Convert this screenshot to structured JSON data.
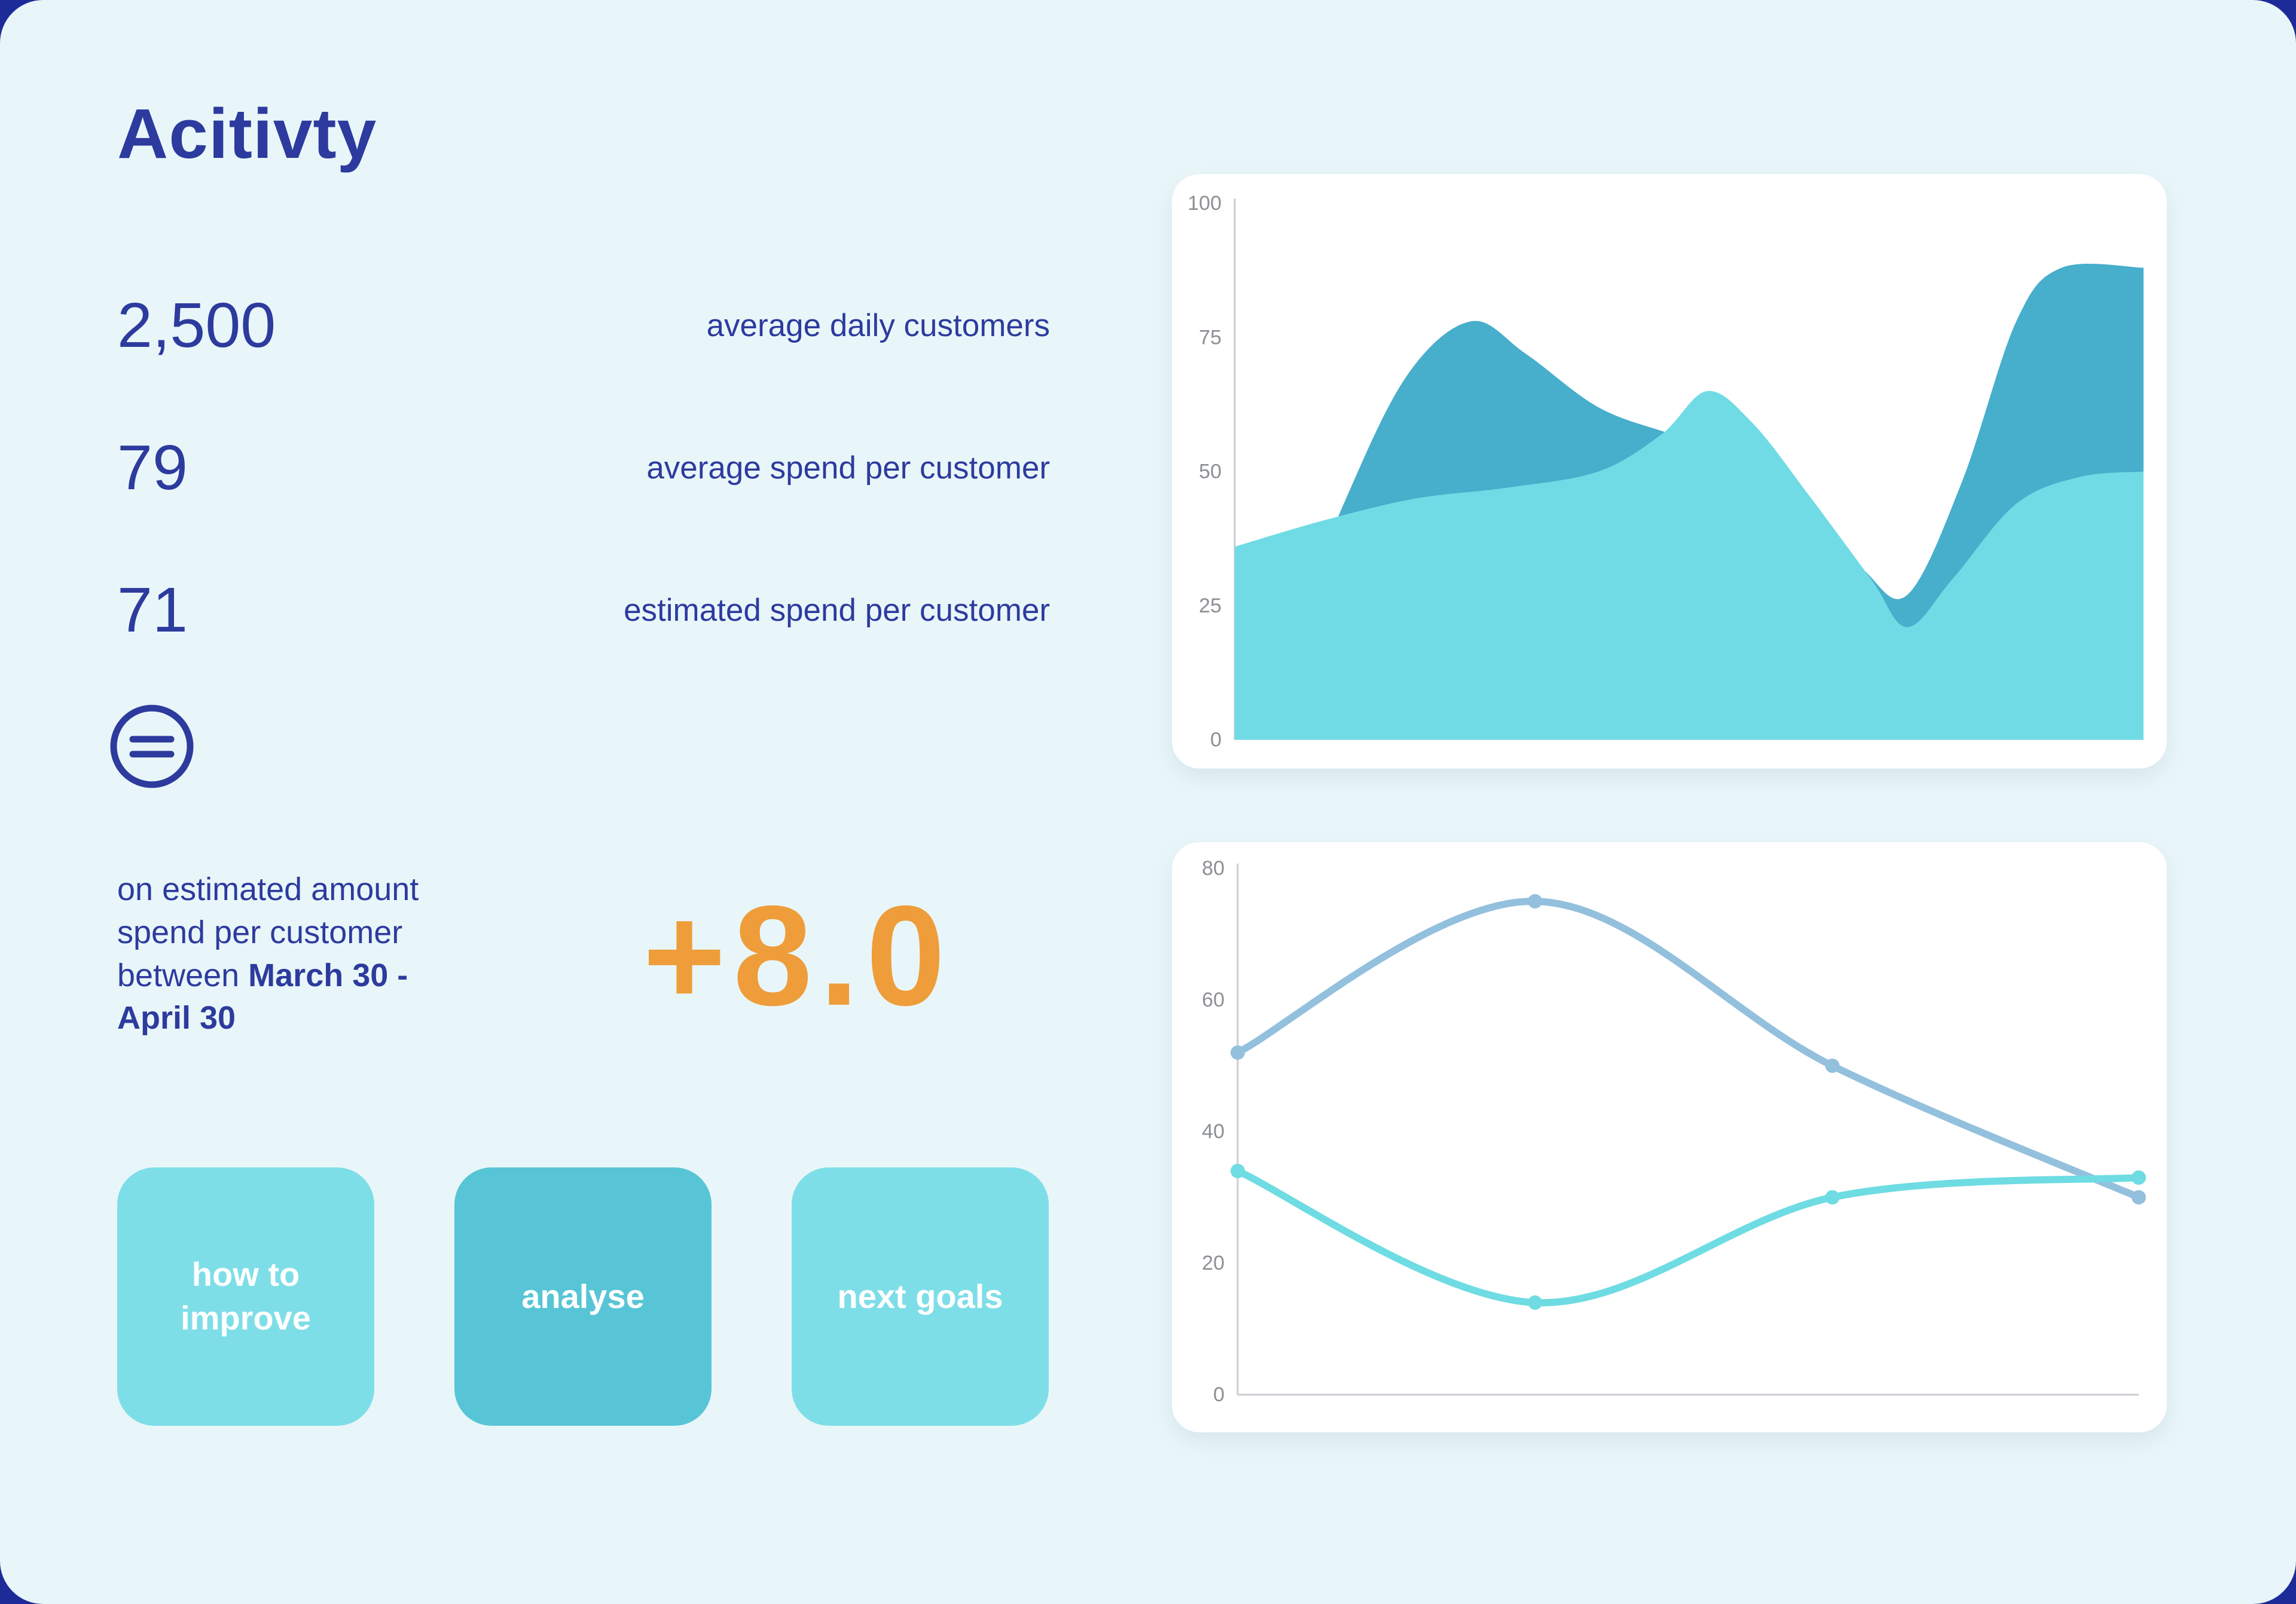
{
  "theme": {
    "background": "#1c2b98",
    "panel": "#e9f6f9",
    "text": "#2d3b9e",
    "accent_orange": "#ee9d3a",
    "card": "#ffffff",
    "axis_color": "#c8cdd2",
    "tick_color": "#8c8f94"
  },
  "header": {
    "title": "Acitivty"
  },
  "stats": [
    {
      "value": "2,500",
      "label": "average daily customers"
    },
    {
      "value": "79",
      "label": "average spend per customer"
    },
    {
      "value": "71",
      "label": "estimated spend per customer"
    }
  ],
  "icons": {
    "equals": "equals-icon"
  },
  "note": {
    "text": "on estimated amount spend per customer between ",
    "highlight": "March 30 - April 30"
  },
  "delta": {
    "value": "+8.0"
  },
  "buttons": [
    {
      "label": "how to improve",
      "color": "#7edee8"
    },
    {
      "label": "analyse",
      "color": "#58c5d6"
    },
    {
      "label": "next goals",
      "color": "#7edee8"
    }
  ],
  "chart_data": [
    {
      "type": "area",
      "title": "",
      "xlabel": "",
      "ylabel": "",
      "ylim": [
        0,
        100
      ],
      "yticks": [
        0,
        25,
        50,
        75,
        100
      ],
      "grid": false,
      "legend": null,
      "series": [
        {
          "name": "dark-teal-area",
          "color": "#47aecb",
          "x": [
            0,
            0.05,
            0.12,
            0.19,
            0.26,
            0.32,
            0.4,
            0.48,
            0.55,
            0.62,
            0.69,
            0.74,
            0.8,
            0.86,
            0.91,
            1
          ],
          "values": [
            0,
            14,
            44,
            68,
            78,
            72,
            62,
            57,
            53,
            44,
            32,
            27,
            48,
            78,
            88,
            88
          ]
        },
        {
          "name": "light-cyan-area",
          "color": "#70dbe5",
          "x": [
            0,
            0.1,
            0.2,
            0.3,
            0.4,
            0.47,
            0.52,
            0.57,
            0.63,
            0.7,
            0.74,
            0.79,
            0.86,
            0.93,
            1
          ],
          "values": [
            36,
            41,
            45,
            47,
            50,
            57,
            65,
            59,
            46,
            30,
            21,
            30,
            44,
            49,
            50
          ]
        }
      ]
    },
    {
      "type": "line",
      "title": "",
      "xlabel": "",
      "ylabel": "",
      "ylim": [
        0,
        80
      ],
      "yticks": [
        0,
        20,
        40,
        60,
        80
      ],
      "grid": false,
      "legend": null,
      "series": [
        {
          "name": "blue-line",
          "color": "#93c0dd",
          "x": [
            0,
            0.33,
            0.66,
            1
          ],
          "values": [
            52,
            75,
            50,
            30
          ],
          "markers": true
        },
        {
          "name": "cyan-line",
          "color": "#6edce2",
          "x": [
            0,
            0.33,
            0.66,
            1
          ],
          "values": [
            34,
            14,
            30,
            33
          ],
          "markers": true
        }
      ]
    }
  ]
}
